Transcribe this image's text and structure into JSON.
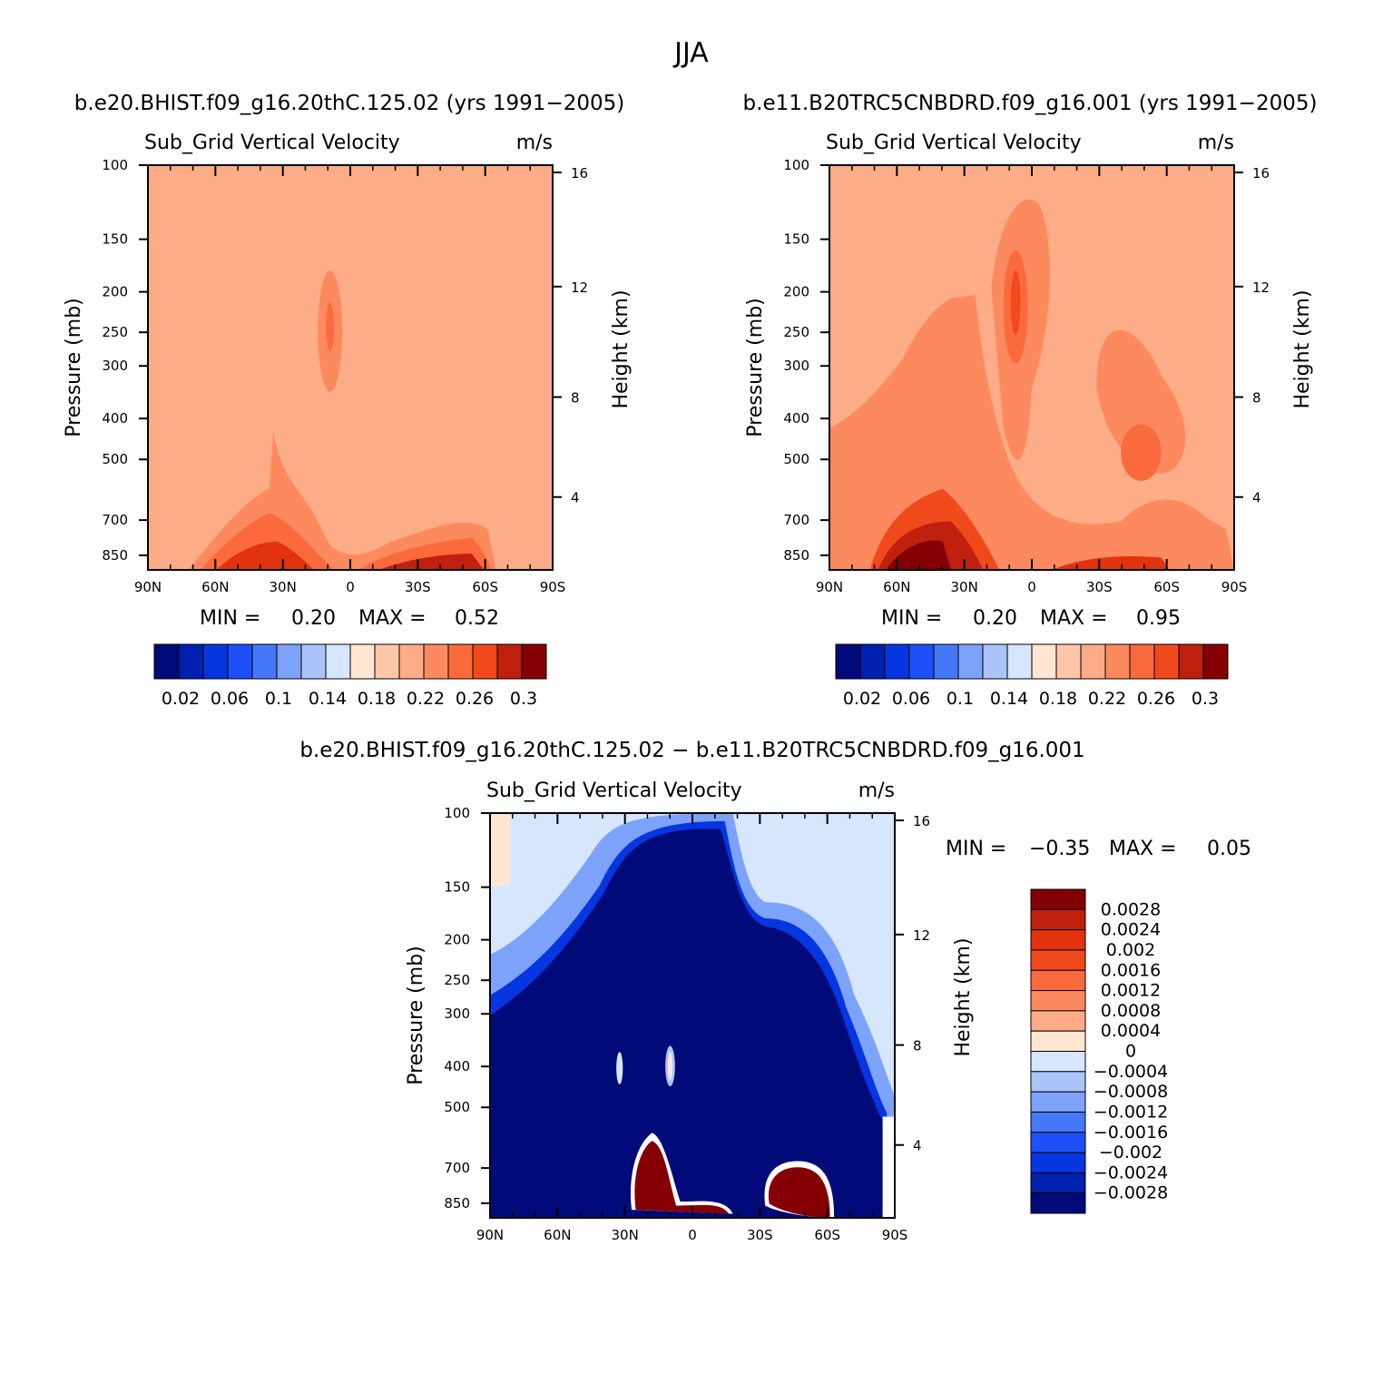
{
  "title": "JJA",
  "chart_data": [
    {
      "type": "heatmap",
      "panel": "top-left",
      "title": "b.e20.BHIST.f09_g16.20thC.125.02 (yrs 1991−2005)",
      "variable": "Sub_Grid Vertical Velocity",
      "units": "m/s",
      "ylabel": "Pressure (mb)",
      "y2label": "Height (km)",
      "x_ticks": [
        "90N",
        "60N",
        "30N",
        "0",
        "30S",
        "60S",
        "90S"
      ],
      "y_ticks": [
        "100",
        "150",
        "200",
        "250",
        "300",
        "400",
        "500",
        "700",
        "850"
      ],
      "y2_ticks": [
        "16",
        "12",
        "8",
        "4"
      ],
      "min_label": "MIN =",
      "min_value": "0.20",
      "max_label": "MAX =",
      "max_value": "0.52",
      "colorbar_labels": [
        "0.02",
        "0.06",
        "0.1",
        "0.14",
        "0.18",
        "0.22",
        "0.26",
        "0.3"
      ],
      "field_summary": "Background ~0.22-0.24; enhanced values near surface at 60N-30N and 20S-60S; tropical column ~0.26 near 10N from 160 to 500 mb."
    },
    {
      "type": "heatmap",
      "panel": "top-right",
      "title": "b.e11.B20TRC5CNBDRD.f09_g16.001 (yrs 1991−2005)",
      "variable": "Sub_Grid Vertical Velocity",
      "units": "m/s",
      "ylabel": "Pressure (mb)",
      "y2label": "Height (km)",
      "x_ticks": [
        "90N",
        "60N",
        "30N",
        "0",
        "30S",
        "60S",
        "90S"
      ],
      "y_ticks": [
        "100",
        "150",
        "200",
        "250",
        "300",
        "400",
        "500",
        "700",
        "850"
      ],
      "y2_ticks": [
        "16",
        "12",
        "8",
        "4"
      ],
      "min_label": "MIN =",
      "min_value": "0.20",
      "max_label": "MAX =",
      "max_value": "0.95",
      "colorbar_labels": [
        "0.02",
        "0.06",
        "0.1",
        "0.14",
        "0.18",
        "0.22",
        "0.26",
        "0.3"
      ],
      "field_summary": "Background ~0.22; broad enhanced regions ~0.26-0.28 at 10N (up to 120 mb), 30S-60S mid-troposphere, and near-surface maxima >0.3 at 60N-30N."
    },
    {
      "type": "heatmap",
      "panel": "bottom-difference",
      "title": "b.e20.BHIST.f09_g16.20thC.125.02 − b.e11.B20TRC5CNBDRD.f09_g16.001",
      "variable": "Sub_Grid Vertical Velocity",
      "units": "m/s",
      "ylabel": "Pressure (mb)",
      "y2label": "Height (km)",
      "x_ticks": [
        "90N",
        "60N",
        "30N",
        "0",
        "30S",
        "60S",
        "90S"
      ],
      "y_ticks": [
        "100",
        "150",
        "200",
        "250",
        "300",
        "400",
        "500",
        "700",
        "850"
      ],
      "y2_ticks": [
        "16",
        "12",
        "8",
        "4"
      ],
      "min_label": "MIN =",
      "min_value": "−0.35",
      "max_label": "MAX =",
      "max_value": "0.05",
      "colorbar_labels": [
        "0.0028",
        "0.0024",
        "0.002",
        "0.0016",
        "0.0012",
        "0.0008",
        "0.0004",
        "0",
        "−0.0004",
        "−0.0008",
        "−0.0012",
        "−0.0016",
        "−0.002",
        "−0.0024",
        "−0.0028"
      ],
      "field_summary": "Mostly strongly negative (< −0.0028) throughout troposphere; near-zero values in upper levels poleward; positive maxima near surface at 30N-0 and 30S-60S and a small positive spot near 10N at 400 mb."
    }
  ],
  "colors": {
    "warm_scale": [
      "#ffe6d2",
      "#fcc6a8",
      "#fcac86",
      "#fc8a5e",
      "#fb6a3c",
      "#f04a1c",
      "#e2320e",
      "#c0200e",
      "#850004"
    ],
    "cool_scale": [
      "#000a78",
      "#0020b0",
      "#0536e0",
      "#1e50fa",
      "#4678fa",
      "#7ca2fa",
      "#aac4fa",
      "#d6e6fc"
    ]
  }
}
